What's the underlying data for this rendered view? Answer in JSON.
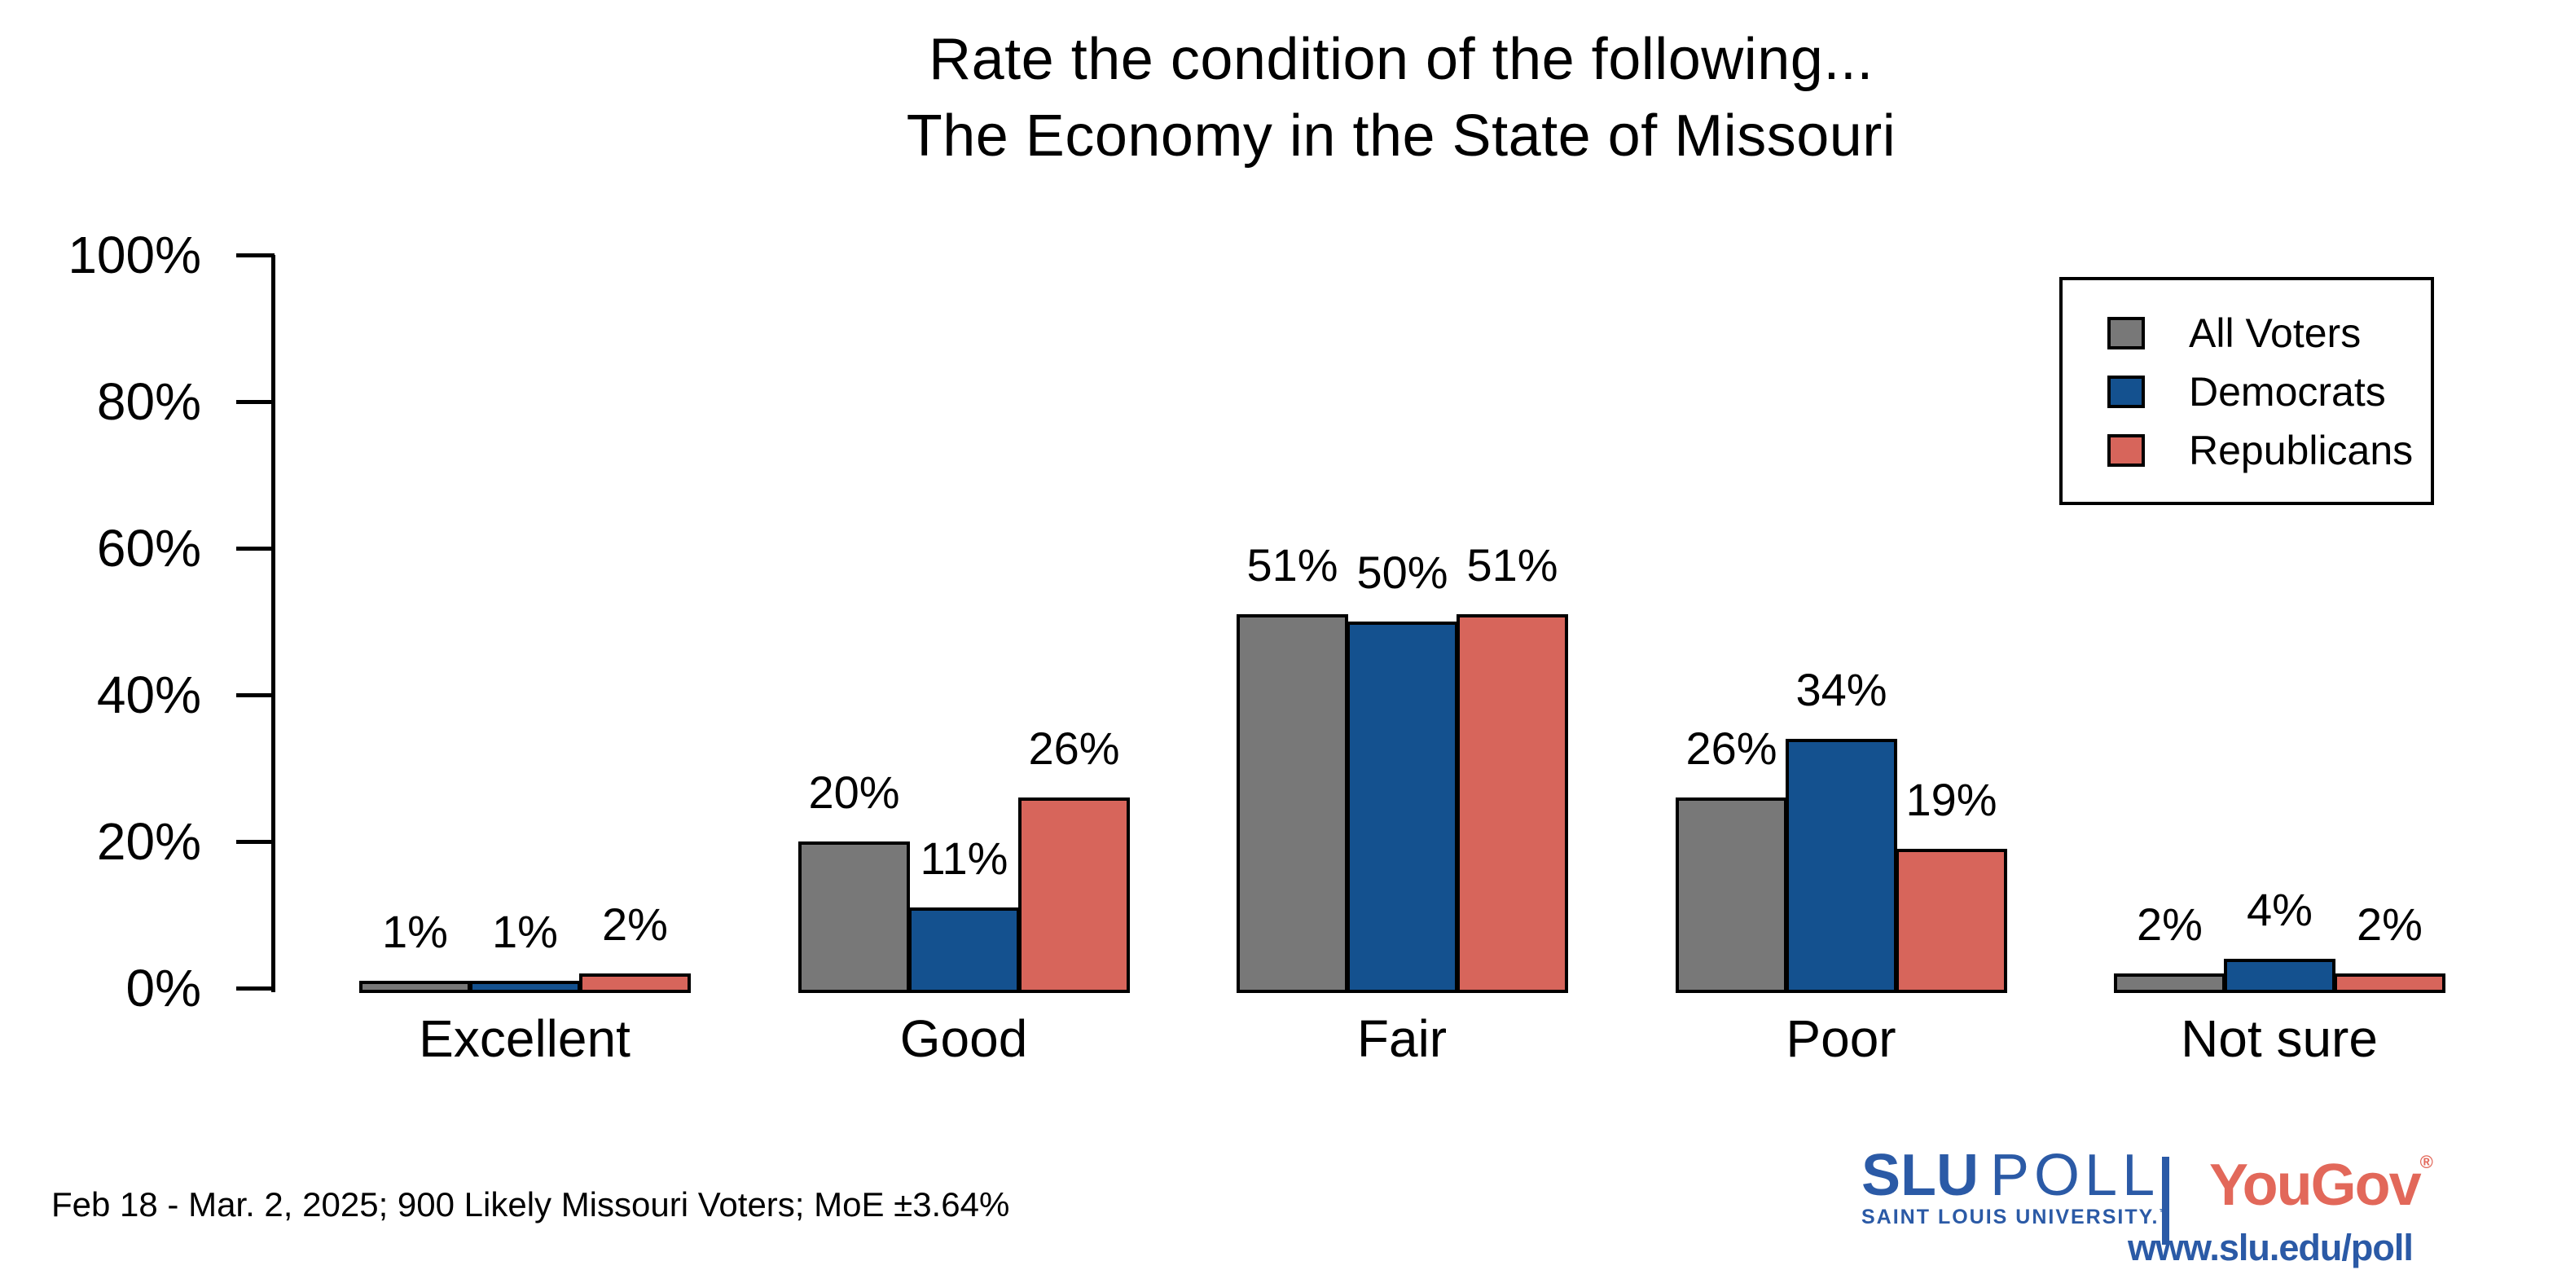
{
  "title": {
    "line1": "Rate the condition of the following...",
    "line2": "The Economy in the State of Missouri"
  },
  "chart_data": {
    "type": "bar",
    "categories": [
      "Excellent",
      "Good",
      "Fair",
      "Poor",
      "Not sure"
    ],
    "series": [
      {
        "name": "All Voters",
        "color": "#787878",
        "values": [
          1,
          20,
          51,
          26,
          2
        ]
      },
      {
        "name": "Democrats",
        "color": "#14518f",
        "values": [
          1,
          11,
          50,
          34,
          4
        ]
      },
      {
        "name": "Republicans",
        "color": "#d7655b",
        "values": [
          2,
          26,
          51,
          19,
          2
        ]
      }
    ],
    "value_label_suffix": "%",
    "yticks": [
      "0%",
      "20%",
      "40%",
      "60%",
      "80%",
      "100%"
    ],
    "ylim": [
      0,
      100
    ],
    "grid": false,
    "legend_position": "top-right",
    "bar_outline_color": "#000000"
  },
  "footer": {
    "note": "Feb 18 - Mar. 2, 2025; 900 Likely Missouri Voters; MoE ±3.64%"
  },
  "branding": {
    "slu_bold": "SLU",
    "slu_rest": "POLL",
    "slu_sub": "SAINT LOUIS UNIVERSITY.",
    "slu_tm": "™",
    "yougov": "YouGov",
    "yougov_reg": "®",
    "url": "www.slu.edu/poll",
    "slu_blue": "#2b5aa6",
    "yougov_red": "#e2685a"
  }
}
